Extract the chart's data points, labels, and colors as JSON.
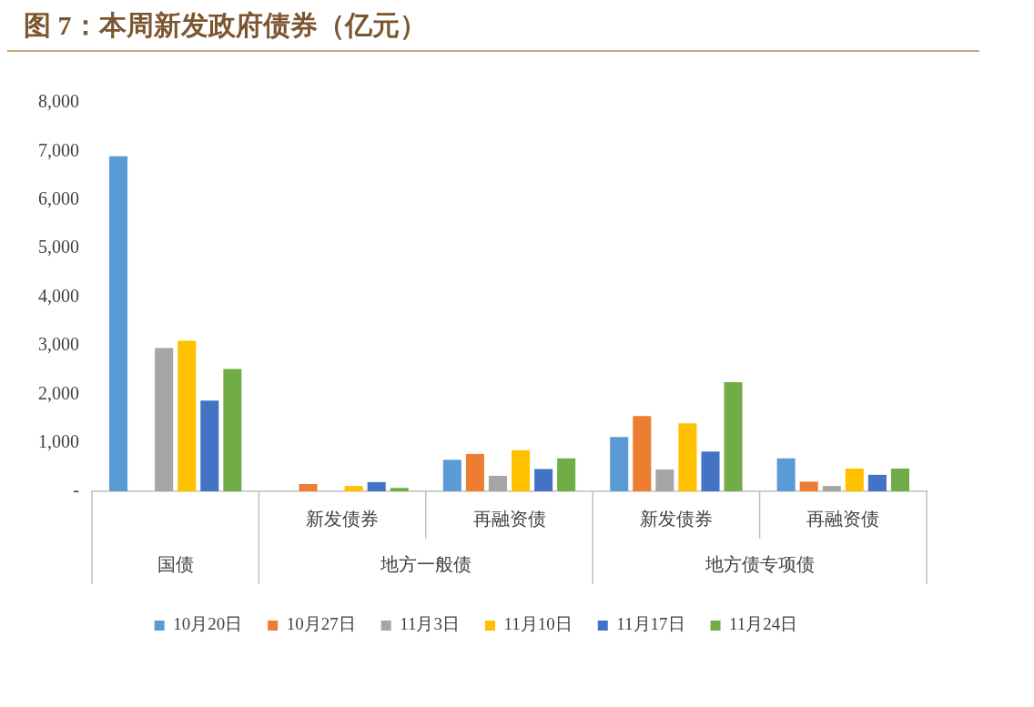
{
  "chart_data": {
    "type": "bar",
    "title": "图 7：本周新发政府债券（亿元）",
    "categories": [
      null,
      "新发债券",
      "再融资债",
      "新发债券",
      "再融资债"
    ],
    "annotations": [
      "国债",
      "地方一般债",
      "地方债专项债"
    ],
    "series": [
      {
        "name": "10月20日",
        "color": "#5b9bd5",
        "values": [
          6900,
          null,
          650,
          1120,
          680
        ]
      },
      {
        "name": "10月27日",
        "color": "#ed7d31",
        "values": [
          null,
          150,
          770,
          1550,
          200
        ]
      },
      {
        "name": "11月3日",
        "color": "#a5a5a5",
        "values": [
          2950,
          null,
          320,
          450,
          110
        ]
      },
      {
        "name": "11月10日",
        "color": "#ffc000",
        "values": [
          3100,
          110,
          850,
          1400,
          470
        ]
      },
      {
        "name": "11月17日",
        "color": "#4472c4",
        "values": [
          1870,
          190,
          460,
          820,
          340
        ]
      },
      {
        "name": "11月24日",
        "color": "#70ad47",
        "values": [
          2520,
          70,
          680,
          2250,
          470
        ]
      }
    ],
    "ylim": [
      0,
      8000
    ],
    "yticks": [
      {
        "value": 0,
        "label": "-"
      },
      {
        "value": 1000,
        "label": "1,000"
      },
      {
        "value": 2000,
        "label": "2,000"
      },
      {
        "value": 3000,
        "label": "3,000"
      },
      {
        "value": 4000,
        "label": "4,000"
      },
      {
        "value": 5000,
        "label": "5,000"
      },
      {
        "value": 6000,
        "label": "6,000"
      },
      {
        "value": 7000,
        "label": "7,000"
      },
      {
        "value": 8000,
        "label": "8,000"
      }
    ],
    "grid": false,
    "legend": "bottom"
  }
}
